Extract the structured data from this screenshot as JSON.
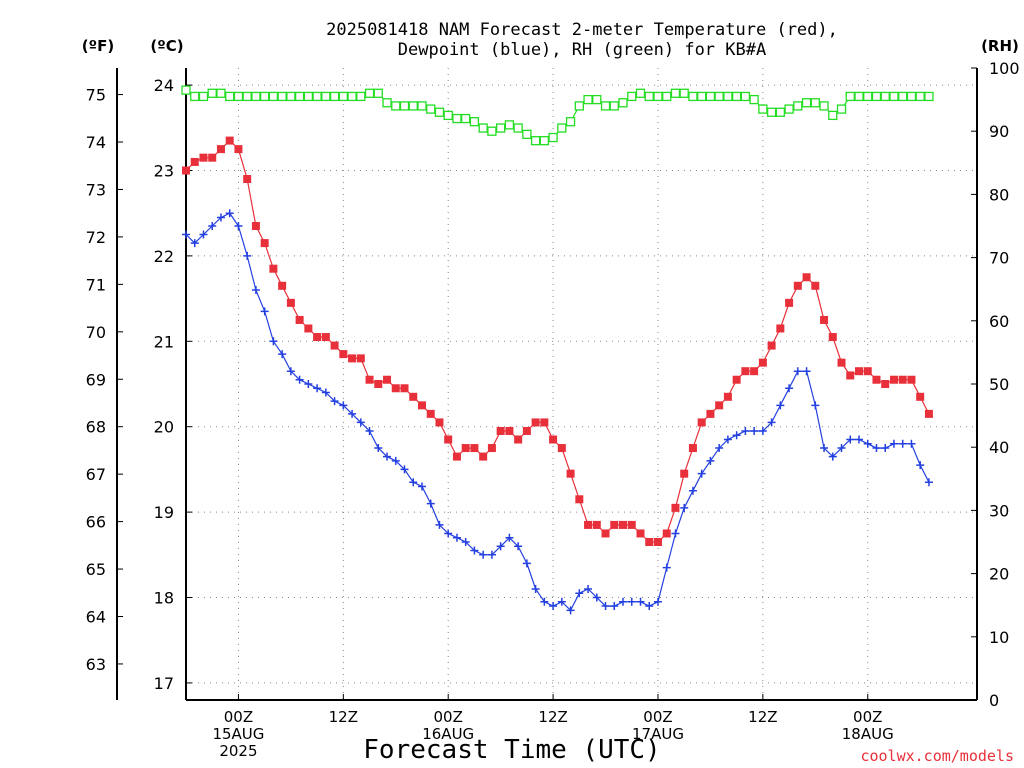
{
  "chart_data": {
    "type": "line",
    "title_line1": "2025081418 NAM Forecast 2-meter Temperature (red),",
    "title_line2": "Dewpoint (blue), RH (green) for KB#A",
    "xlabel": "Forecast Time (UTC)",
    "credit": "coolwx.com/models",
    "left_unit_f": "(ºF)",
    "left_unit_c": "(ºC)",
    "right_unit": "(RH)",
    "x_start": "2025-08-14 18Z",
    "x_end": "2025-08-18 12Z",
    "ylim_c": [
      16.8,
      24.2
    ],
    "ylim_rh": [
      0,
      100
    ],
    "grid": true,
    "c_ticks": [
      17,
      18,
      19,
      20,
      21,
      22,
      23,
      24
    ],
    "f_ticks": [
      63,
      64,
      65,
      66,
      67,
      68,
      69,
      70,
      71,
      72,
      73,
      74,
      75
    ],
    "rh_ticks": [
      0,
      10,
      20,
      30,
      40,
      50,
      60,
      70,
      80,
      90,
      100
    ],
    "x_ticks": [
      {
        "t": "2025-08-15 00Z",
        "lines": [
          "00Z",
          "15AUG",
          "2025"
        ]
      },
      {
        "t": "2025-08-15 12Z",
        "lines": [
          "12Z"
        ]
      },
      {
        "t": "2025-08-16 00Z",
        "lines": [
          "00Z",
          "16AUG"
        ]
      },
      {
        "t": "2025-08-16 12Z",
        "lines": [
          "12Z"
        ]
      },
      {
        "t": "2025-08-17 00Z",
        "lines": [
          "00Z",
          "17AUG"
        ]
      },
      {
        "t": "2025-08-17 12Z",
        "lines": [
          "12Z"
        ]
      },
      {
        "t": "2025-08-18 00Z",
        "lines": [
          "00Z",
          "18AUG"
        ]
      }
    ],
    "x_interval": "1 hour",
    "series": [
      {
        "color": "#e8303a",
        "marker": "filled-square",
        "units": "degC",
        "values": [
          23.0,
          23.1,
          23.15,
          23.15,
          23.25,
          23.35,
          23.25,
          22.9,
          22.35,
          22.15,
          21.85,
          21.65,
          21.45,
          21.25,
          21.15,
          21.05,
          21.05,
          20.95,
          20.85,
          20.8,
          20.8,
          20.55,
          20.5,
          20.55,
          20.45,
          20.45,
          20.35,
          20.25,
          20.15,
          20.05,
          19.85,
          19.65,
          19.75,
          19.75,
          19.65,
          19.75,
          19.95,
          19.95,
          19.85,
          19.95,
          20.05,
          20.05,
          19.85,
          19.75,
          19.45,
          19.15,
          18.85,
          18.85,
          18.75,
          18.85,
          18.85,
          18.85,
          18.75,
          18.65,
          18.65,
          18.75,
          19.05,
          19.45,
          19.75,
          20.05,
          20.15,
          20.25,
          20.35,
          20.55,
          20.65,
          20.65,
          20.75,
          20.95,
          21.15,
          21.45,
          21.65,
          21.75,
          21.65,
          21.25,
          21.05,
          20.75,
          20.6,
          20.65,
          20.65,
          20.55,
          20.5,
          20.55,
          20.55,
          20.55,
          20.35,
          20.15
        ]
      },
      {
        "color": "#2440e0",
        "marker": "plus",
        "units": "degC",
        "values": [
          22.25,
          22.15,
          22.25,
          22.35,
          22.45,
          22.5,
          22.35,
          22.0,
          21.6,
          21.35,
          21.0,
          20.85,
          20.65,
          20.55,
          20.5,
          20.45,
          20.4,
          20.3,
          20.25,
          20.15,
          20.05,
          19.95,
          19.75,
          19.65,
          19.6,
          19.5,
          19.35,
          19.3,
          19.1,
          18.85,
          18.75,
          18.7,
          18.65,
          18.55,
          18.5,
          18.5,
          18.6,
          18.7,
          18.6,
          18.4,
          18.1,
          17.95,
          17.9,
          17.95,
          17.85,
          18.05,
          18.1,
          18.0,
          17.9,
          17.9,
          17.95,
          17.95,
          17.95,
          17.9,
          17.95,
          18.35,
          18.75,
          19.05,
          19.25,
          19.45,
          19.6,
          19.75,
          19.85,
          19.9,
          19.95,
          19.95,
          19.95,
          20.05,
          20.25,
          20.45,
          20.65,
          20.65,
          20.25,
          19.75,
          19.65,
          19.75,
          19.85,
          19.85,
          19.8,
          19.75,
          19.75,
          19.8,
          19.8,
          19.8,
          19.55,
          19.35
        ]
      },
      {
        "color": "#22dd22",
        "marker": "open-square",
        "units": "percent",
        "values": [
          96.5,
          95.5,
          95.5,
          96.0,
          96.0,
          95.5,
          95.5,
          95.5,
          95.5,
          95.5,
          95.5,
          95.5,
          95.5,
          95.5,
          95.5,
          95.5,
          95.5,
          95.5,
          95.5,
          95.5,
          95.5,
          96.0,
          96.0,
          94.5,
          94.0,
          94.0,
          94.0,
          94.0,
          93.5,
          93.0,
          92.5,
          92.0,
          92.0,
          91.5,
          90.5,
          90.0,
          90.5,
          91.0,
          90.5,
          89.5,
          88.5,
          88.5,
          89.0,
          90.5,
          91.5,
          94.0,
          95.0,
          95.0,
          94.0,
          94.0,
          94.5,
          95.5,
          96.0,
          95.5,
          95.5,
          95.5,
          96.0,
          96.0,
          95.5,
          95.5,
          95.5,
          95.5,
          95.5,
          95.5,
          95.5,
          95.0,
          93.5,
          93.0,
          93.0,
          93.5,
          94.0,
          94.5,
          94.5,
          94.0,
          92.5,
          93.5,
          95.5,
          95.5,
          95.5,
          95.5,
          95.5,
          95.5,
          95.5,
          95.5,
          95.5,
          95.5
        ]
      }
    ]
  }
}
